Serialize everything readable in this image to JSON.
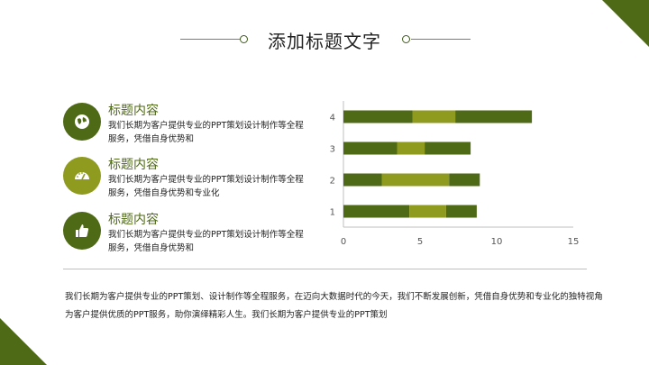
{
  "page": {
    "title": "添加标题文字",
    "footer_text": "我们长期为客户提供专业的PPT策划、设计制作等全程服务，在迈向大数据时代的今天，我们不断发展创新，凭借自身优势和专业化的独特视角为客户提供优质的PPT服务，助你演绎精彩人生。我们长期为客户提供专业的PPT策划"
  },
  "colors": {
    "dark_green": "#4f6a16",
    "olive": "#8f9b1f",
    "accent_dark": "#3f5a1c"
  },
  "items": [
    {
      "title": "标题内容",
      "desc": "我们长期为客户提供专业的PPT策划设计制作等全程服务，凭借自身优势和",
      "icon": "globe-icon",
      "icon_color": "#4f6a16"
    },
    {
      "title": "标题内容",
      "desc": "我们长期为客户提供专业的PPT策划设计制作等全程服务，凭借自身优势和专业化",
      "icon": "speedometer-icon",
      "icon_color": "#8f9b1f"
    },
    {
      "title": "标题内容",
      "desc": "我们长期为客户提供专业的PPT策划设计制作等全程服务，凭借自身优势和",
      "icon": "thumbs-up-icon",
      "icon_color": "#4f6a16"
    }
  ],
  "chart_data": {
    "type": "bar",
    "orientation": "horizontal",
    "stacked": true,
    "categories": [
      "1",
      "2",
      "3",
      "4"
    ],
    "series": [
      {
        "values": [
          4.3,
          2.5,
          3.5,
          4.5
        ],
        "color": "#4f6a16"
      },
      {
        "values": [
          2.4,
          4.4,
          1.8,
          2.8
        ],
        "color": "#8f9b1f"
      },
      {
        "values": [
          2.0,
          2.0,
          3.0,
          5.0
        ],
        "color": "#4f6a16"
      }
    ],
    "xlim": [
      0,
      15
    ],
    "x_ticks": [
      "0",
      "5",
      "10",
      "15"
    ],
    "grid": false,
    "legend": "none"
  }
}
